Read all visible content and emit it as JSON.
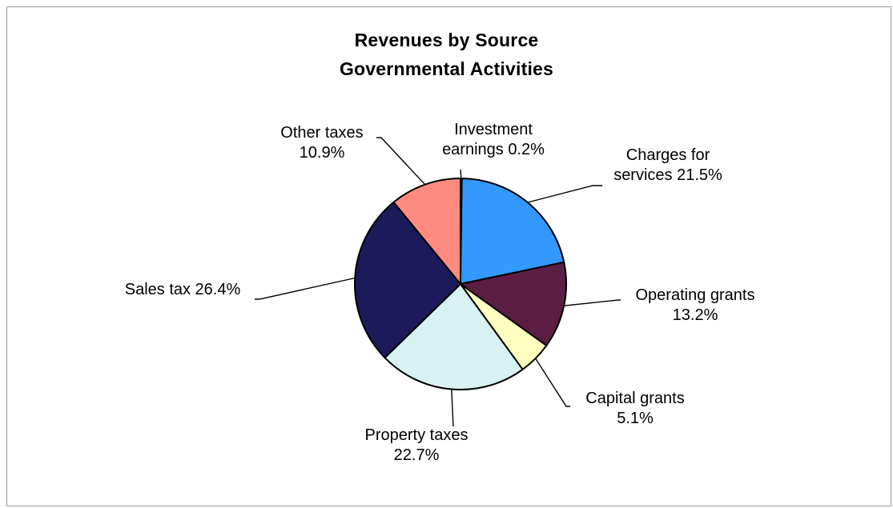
{
  "chart_data": {
    "type": "pie",
    "title": "Revenues by Source",
    "subtitle": "Governmental Activities",
    "slices": [
      {
        "label": "Investment earnings",
        "value": 0.2,
        "color": "#3b2b8a"
      },
      {
        "label": "Charges for services",
        "value": 21.5,
        "color": "#3399ff"
      },
      {
        "label": "Operating grants",
        "value": 13.2,
        "color": "#5c1e42"
      },
      {
        "label": "Capital grants",
        "value": 5.1,
        "color": "#ffffc0"
      },
      {
        "label": "Property taxes",
        "value": 22.7,
        "color": "#d8f1f1"
      },
      {
        "label": "Sales tax",
        "value": 26.4,
        "color": "#1c1a5a"
      },
      {
        "label": "Other taxes",
        "value": 10.9,
        "color": "#ff8a80"
      }
    ],
    "labels": [
      {
        "lines": [
          "Investment",
          "earnings 0.2%"
        ]
      },
      {
        "lines": [
          "Charges for",
          "services 21.5%"
        ]
      },
      {
        "lines": [
          "Operating grants",
          "13.2%"
        ]
      },
      {
        "lines": [
          "Capital grants",
          "5.1%"
        ]
      },
      {
        "lines": [
          "Property taxes",
          "22.7%"
        ]
      },
      {
        "lines": [
          "Sales tax 26.4%"
        ]
      },
      {
        "lines": [
          "Other taxes",
          "10.9%"
        ]
      }
    ],
    "legend": "none"
  }
}
